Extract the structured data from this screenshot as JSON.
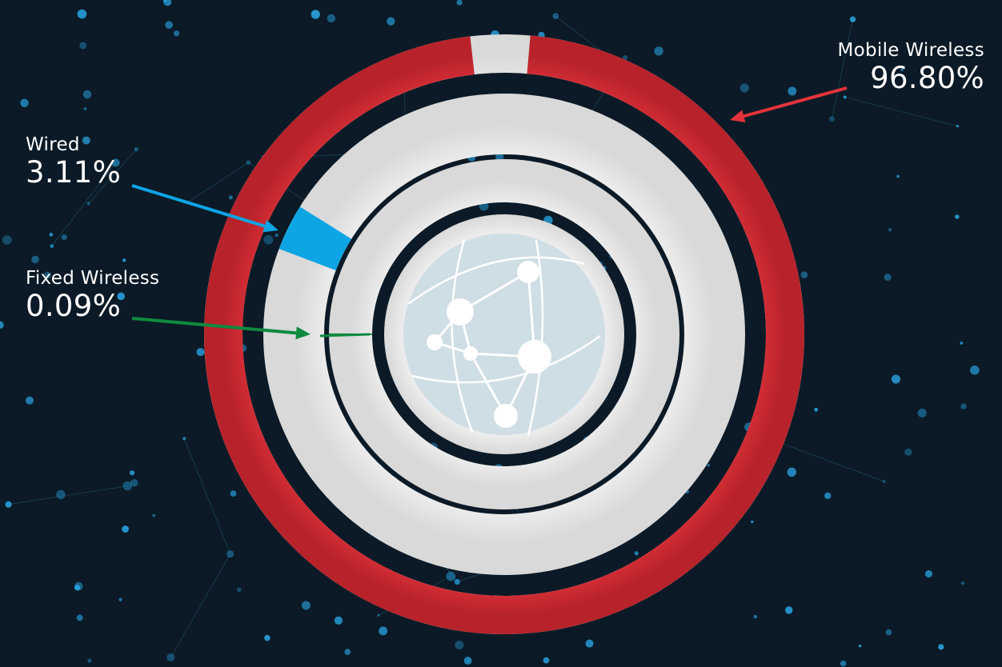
{
  "chart_data": {
    "type": "pie",
    "variant": "concentric rings",
    "title": "",
    "series": [
      {
        "name": "Mobile Wireless",
        "value_label": "96.80%",
        "value": 96.8,
        "color": "#e4333b"
      },
      {
        "name": "Wired",
        "value_label": "3.11%",
        "value": 3.11,
        "color": "#0ea5e4"
      },
      {
        "name": "Fixed Wireless",
        "value_label": "0.09%",
        "value": 0.09,
        "color": "#0f8a3e"
      }
    ],
    "legend": "none (callout labels with arrows)"
  },
  "icons": {
    "center": "globe-network-icon",
    "background": "network-nodes-pattern"
  },
  "colors": {
    "ring_base": "#f2f2f2",
    "background": "#0b1a26",
    "globe": "#cfdde5"
  }
}
